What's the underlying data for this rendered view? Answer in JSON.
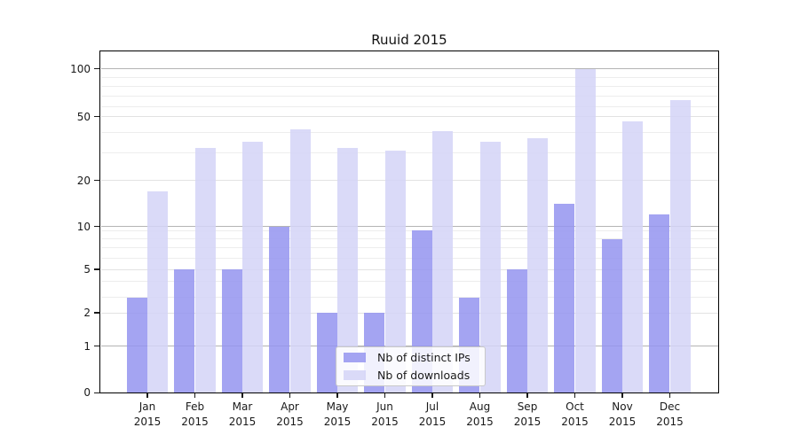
{
  "chart_data": {
    "type": "bar",
    "title": "Ruuid 2015",
    "categories": [
      "Jan",
      "Feb",
      "Mar",
      "Apr",
      "May",
      "Jun",
      "Jul",
      "Aug",
      "Sep",
      "Oct",
      "Nov",
      "Dec"
    ],
    "x_tick_second_line": "2015",
    "series": [
      {
        "name": "Nb of distinct IPs",
        "color": "#9494f0",
        "fill_opacity": 0.85,
        "values": [
          3,
          5,
          5,
          10,
          2,
          2,
          9,
          3,
          5,
          14,
          8,
          12
        ]
      },
      {
        "name": "Nb of downloads",
        "color": "#d3d3f7",
        "fill_opacity": 0.85,
        "values": [
          17,
          32,
          35,
          42,
          32,
          31,
          41,
          35,
          37,
          100,
          47,
          66
        ]
      }
    ],
    "y_axis": {
      "scale": "log-like",
      "range": [
        0,
        100
      ],
      "ticks": [
        100,
        50,
        20,
        10,
        5,
        2,
        1,
        0
      ],
      "tick_labels": [
        "100",
        "50",
        "20",
        "10",
        "5",
        "2",
        "1",
        "0"
      ]
    },
    "grid": true,
    "legend": {
      "position": "lower center",
      "items": [
        "Nb of distinct IPs",
        "Nb of downloads"
      ]
    }
  }
}
